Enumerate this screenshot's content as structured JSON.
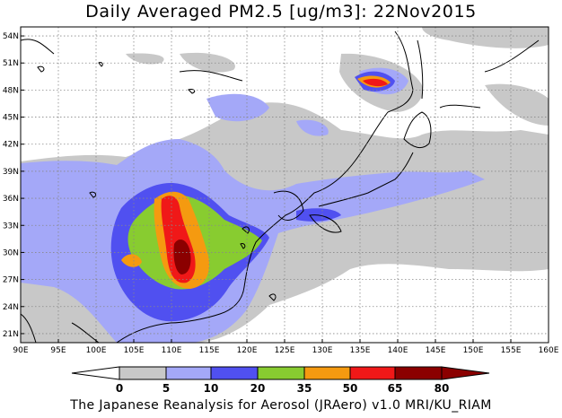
{
  "title": "Daily Averaged PM2.5 [ug/m3]: 22Nov2015",
  "footer": "The Japanese Reanalysis for Aerosol (JRAero) v1.0 MRI/KU_RIAM",
  "map": {
    "lon_range": [
      90,
      160
    ],
    "lat_range": [
      20,
      55
    ],
    "lon_ticks": [
      "90E",
      "95E",
      "100E",
      "105E",
      "110E",
      "115E",
      "120E",
      "125E",
      "130E",
      "135E",
      "140E",
      "145E",
      "150E",
      "155E",
      "160E"
    ],
    "lat_ticks": [
      "54N",
      "51N",
      "48N",
      "45N",
      "42N",
      "39N",
      "36N",
      "33N",
      "30N",
      "27N",
      "24N",
      "21N"
    ],
    "gridlines": "dotted"
  },
  "colorbar": {
    "levels": [
      "0",
      "5",
      "10",
      "20",
      "35",
      "50",
      "65",
      "80"
    ],
    "colors": [
      "#ffffff",
      "#c8c8c8",
      "#a4a8f8",
      "#5050f0",
      "#88cc30",
      "#f59a10",
      "#f01818",
      "#8b0000"
    ]
  }
}
